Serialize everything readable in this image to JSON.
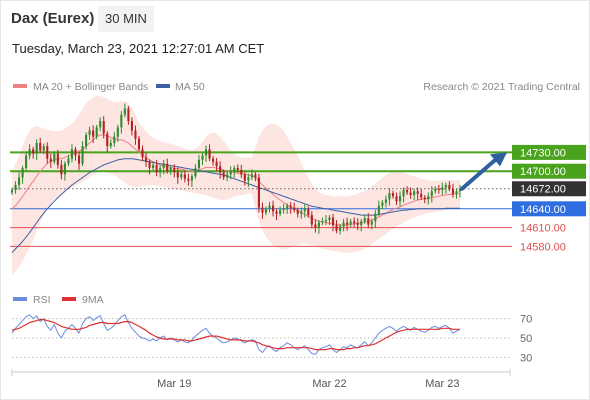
{
  "header": {
    "title": "Dax (Eurex)",
    "timeframe": "30 MIN"
  },
  "datetime": "Tuesday, March 23, 2021 12:27:01 AM CET",
  "legend": {
    "bollinger": "MA 20 + Bollinger Bands",
    "ma50": "MA 50",
    "credit": "Research © 2021 Trading Central"
  },
  "rsi_legend": {
    "rsi": "RSI",
    "ma9": "9MA"
  },
  "colors": {
    "bollinger_band": "#fde0dc",
    "ma20": "#f08080",
    "ma50": "#3d5fa8",
    "green_level": "#4aa31c",
    "blue_level": "#2f6ee0",
    "red_level": "#e05050",
    "current_price": "#333333",
    "candle_up": "#2e8b2e",
    "candle_down": "#b22222",
    "rsi": "#6a8cdc",
    "rsi_ma": "#e03030"
  },
  "chart_data": {
    "type": "candlestick",
    "symbol": "Dax (Eurex)",
    "interval": "30 MIN",
    "x_ticks": [
      "Mar 19",
      "Mar 22",
      "Mar 23"
    ],
    "price_range": [
      14520,
      14820
    ],
    "levels": [
      {
        "value": 14730.0,
        "label": "14730.00",
        "kind": "resistance",
        "color": "#4aa31c"
      },
      {
        "value": 14700.0,
        "label": "14700.00",
        "kind": "resistance",
        "color": "#4aa31c"
      },
      {
        "value": 14672.0,
        "label": "14672.00",
        "kind": "current",
        "color": "#333333"
      },
      {
        "value": 14640.0,
        "label": "14640.00",
        "kind": "pivot",
        "color": "#2f6ee0"
      },
      {
        "value": 14610.0,
        "label": "14610.00",
        "kind": "support",
        "color": "#e05050"
      },
      {
        "value": 14580.0,
        "label": "14580.00",
        "kind": "support",
        "color": "#e05050"
      }
    ],
    "closes": [
      14670,
      14678,
      14690,
      14705,
      14725,
      14735,
      14728,
      14745,
      14733,
      14740,
      14720,
      14715,
      14728,
      14710,
      14695,
      14712,
      14720,
      14735,
      14725,
      14712,
      14740,
      14758,
      14765,
      14755,
      14770,
      14780,
      14760,
      14740,
      14745,
      14755,
      14770,
      14790,
      14800,
      14780,
      14765,
      14752,
      14735,
      14722,
      14715,
      14705,
      14710,
      14698,
      14705,
      14712,
      14700,
      14705,
      14698,
      14690,
      14695,
      14688,
      14685,
      14692,
      14705,
      14718,
      14725,
      14735,
      14720,
      14715,
      14708,
      14698,
      14690,
      14695,
      14700,
      14705,
      14702,
      14695,
      14685,
      14690,
      14695,
      14690,
      14642,
      14634,
      14640,
      14645,
      14636,
      14632,
      14638,
      14640,
      14645,
      14642,
      14638,
      14632,
      14636,
      14640,
      14630,
      14615,
      14610,
      14618,
      14620,
      14622,
      14626,
      14614,
      14605,
      14612,
      14618,
      14615,
      14620,
      14617,
      14614,
      14620,
      14625,
      14615,
      14620,
      14632,
      14645,
      14650,
      14655,
      14665,
      14660,
      14652,
      14660,
      14670,
      14666,
      14662,
      14668,
      14664,
      14658,
      14655,
      14660,
      14668,
      14672,
      14670,
      14674,
      14678,
      14672,
      14664,
      14668,
      14672
    ],
    "ma20": [
      14640,
      14645,
      14652,
      14660,
      14668,
      14676,
      14684,
      14692,
      14700,
      14706,
      14712,
      14716,
      14718,
      14720,
      14720,
      14722,
      14724,
      14727,
      14730,
      14732,
      14735,
      14740,
      14745,
      14750,
      14755,
      14758,
      14758,
      14756,
      14754,
      14752,
      14750,
      14750,
      14748,
      14745,
      14740,
      14735,
      14730,
      14726,
      14722,
      14718,
      14715,
      14712,
      14710,
      14708,
      14707,
      14706,
      14705,
      14704,
      14703,
      14702,
      14700,
      14699,
      14700,
      14702,
      14704,
      14706,
      14706,
      14706,
      14705,
      14704,
      14702,
      14700,
      14699,
      14698,
      14697,
      14696,
      14695,
      14694,
      14693,
      14690,
      14684,
      14678,
      14673,
      14668,
      14663,
      14658,
      14654,
      14650,
      14646,
      14643,
      14640,
      14637,
      14634,
      14631,
      14628,
      14625,
      14622,
      14620,
      14619,
      14618,
      14617,
      14616,
      14615,
      14614,
      14614,
      14614,
      14615,
      14616,
      14617,
      14618,
      14619,
      14620,
      14622,
      14624,
      14627,
      14630,
      14633,
      14636,
      14639,
      14641,
      14643,
      14646,
      14648,
      14650,
      14652,
      14654,
      14655,
      14656,
      14657,
      14658,
      14659,
      14660,
      14661,
      14662,
      14663,
      14663,
      14664,
      14664
    ],
    "bollinger_upper": [
      14700,
      14712,
      14725,
      14740,
      14755,
      14765,
      14770,
      14772,
      14770,
      14768,
      14766,
      14765,
      14764,
      14764,
      14765,
      14768,
      14772,
      14776,
      14782,
      14790,
      14800,
      14808,
      14814,
      14818,
      14820,
      14820,
      14818,
      14815,
      14812,
      14810,
      14810,
      14812,
      14812,
      14810,
      14800,
      14790,
      14778,
      14770,
      14763,
      14758,
      14753,
      14750,
      14748,
      14746,
      14745,
      14744,
      14742,
      14740,
      14738,
      14736,
      14735,
      14734,
      14736,
      14740,
      14748,
      14755,
      14760,
      14762,
      14760,
      14755,
      14748,
      14740,
      14733,
      14728,
      14724,
      14722,
      14722,
      14722,
      14722,
      14740,
      14755,
      14765,
      14772,
      14775,
      14776,
      14775,
      14770,
      14765,
      14755,
      14745,
      14735,
      14725,
      14714,
      14700,
      14690,
      14680,
      14672,
      14667,
      14664,
      14662,
      14661,
      14660,
      14660,
      14660,
      14660,
      14660,
      14661,
      14662,
      14664,
      14666,
      14669,
      14672,
      14676,
      14680,
      14685,
      14690,
      14694,
      14698,
      14700,
      14700,
      14700,
      14698,
      14696,
      14694,
      14692,
      14690,
      14688,
      14687,
      14686,
      14685,
      14685,
      14685,
      14686,
      14686,
      14686,
      14686,
      14686,
      14686
    ],
    "bollinger_lower": [
      14535,
      14540,
      14548,
      14557,
      14567,
      14578,
      14590,
      14604,
      14618,
      14630,
      14640,
      14648,
      14655,
      14660,
      14664,
      14668,
      14671,
      14674,
      14677,
      14680,
      14683,
      14686,
      14690,
      14694,
      14698,
      14700,
      14700,
      14698,
      14696,
      14694,
      14690,
      14686,
      14682,
      14678,
      14676,
      14675,
      14675,
      14676,
      14677,
      14678,
      14678,
      14677,
      14676,
      14675,
      14674,
      14672,
      14671,
      14670,
      14669,
      14668,
      14667,
      14666,
      14665,
      14664,
      14663,
      14662,
      14660,
      14658,
      14656,
      14654,
      14654,
      14655,
      14657,
      14659,
      14661,
      14662,
      14663,
      14664,
      14664,
      14640,
      14620,
      14605,
      14595,
      14588,
      14582,
      14578,
      14576,
      14575,
      14576,
      14578,
      14580,
      14582,
      14583,
      14584,
      14583,
      14582,
      14580,
      14578,
      14576,
      14575,
      14574,
      14573,
      14572,
      14571,
      14570,
      14570,
      14570,
      14571,
      14572,
      14574,
      14576,
      14580,
      14584,
      14588,
      14592,
      14596,
      14600,
      14604,
      14608,
      14612,
      14615,
      14618,
      14621,
      14624,
      14626,
      14628,
      14630,
      14632,
      14633,
      14634,
      14635,
      14636,
      14637,
      14638,
      14639,
      14640,
      14641,
      14642
    ],
    "ma50": [
      14570,
      14576,
      14582,
      14588,
      14595,
      14602,
      14610,
      14618,
      14626,
      14633,
      14640,
      14646,
      14652,
      14658,
      14663,
      14668,
      14673,
      14678,
      14682,
      14686,
      14690,
      14694,
      14698,
      14701,
      14704,
      14707,
      14710,
      14712,
      14714,
      14716,
      14718,
      14719,
      14720,
      14720,
      14720,
      14719,
      14718,
      14717,
      14716,
      14715,
      14714,
      14713,
      14712,
      14711,
      14710,
      14709,
      14708,
      14707,
      14706,
      14705,
      14704,
      14703,
      14702,
      14701,
      14700,
      14699,
      14698,
      14697,
      14696,
      14695,
      14694,
      14692,
      14690,
      14688,
      14686,
      14684,
      14682,
      14680,
      14678,
      14676,
      14674,
      14672,
      14670,
      14668,
      14666,
      14664,
      14662,
      14660,
      14658,
      14656,
      14654,
      14652,
      14650,
      14648,
      14646,
      14644,
      14643,
      14642,
      14641,
      14640,
      14639,
      14638,
      14637,
      14636,
      14635,
      14634,
      14633,
      14632,
      14631,
      14630,
      14630,
      14630,
      14630,
      14630,
      14631,
      14632,
      14633,
      14634,
      14635,
      14636,
      14637,
      14638,
      14638,
      14639,
      14639,
      14640,
      14640,
      14640,
      14640,
      14640,
      14640,
      14640,
      14640,
      14641,
      14641,
      14641,
      14641,
      14641
    ],
    "rsi": {
      "ticks": [
        70,
        50,
        30
      ],
      "range": [
        20,
        80
      ],
      "values": [
        55,
        60,
        64,
        68,
        72,
        74,
        70,
        73,
        67,
        70,
        62,
        58,
        64,
        55,
        50,
        57,
        60,
        64,
        60,
        55,
        65,
        70,
        72,
        68,
        71,
        73,
        65,
        58,
        60,
        63,
        68,
        72,
        74,
        66,
        60,
        56,
        52,
        50,
        49,
        47,
        49,
        47,
        50,
        52,
        48,
        50,
        48,
        46,
        48,
        46,
        45,
        48,
        52,
        55,
        58,
        60,
        55,
        52,
        50,
        47,
        45,
        46,
        48,
        50,
        49,
        47,
        45,
        47,
        48,
        47,
        38,
        35,
        40,
        42,
        38,
        36,
        40,
        42,
        45,
        43,
        40,
        38,
        40,
        42,
        38,
        34,
        33,
        38,
        40,
        41,
        43,
        38,
        35,
        38,
        41,
        40,
        43,
        41,
        40,
        43,
        46,
        42,
        45,
        50,
        55,
        58,
        60,
        62,
        60,
        57,
        60,
        62,
        60,
        58,
        61,
        59,
        57,
        56,
        58,
        61,
        62,
        60,
        62,
        63,
        60,
        55,
        57,
        59
      ],
      "ma9": [
        58,
        59,
        60,
        62,
        64,
        66,
        67,
        68,
        69,
        69,
        68,
        67,
        66,
        64,
        62,
        61,
        60,
        59,
        59,
        59,
        60,
        61,
        63,
        64,
        65,
        66,
        66,
        65,
        65,
        65,
        65,
        66,
        67,
        67,
        66,
        64,
        62,
        60,
        58,
        55,
        53,
        51,
        50,
        49,
        49,
        49,
        49,
        48,
        48,
        48,
        47,
        47,
        48,
        49,
        50,
        51,
        52,
        52,
        52,
        51,
        50,
        49,
        48,
        48,
        48,
        48,
        47,
        47,
        47,
        46,
        45,
        43,
        42,
        41,
        40,
        39,
        39,
        39,
        40,
        40,
        40,
        40,
        40,
        40,
        40,
        39,
        38,
        38,
        38,
        38,
        39,
        39,
        38,
        38,
        38,
        39,
        39,
        40,
        40,
        41,
        42,
        42,
        43,
        44,
        46,
        48,
        50,
        52,
        54,
        56,
        57,
        58,
        59,
        59,
        59,
        59,
        59,
        59,
        59,
        59,
        59,
        59,
        60,
        60,
        60,
        59,
        59,
        59
      ]
    }
  }
}
